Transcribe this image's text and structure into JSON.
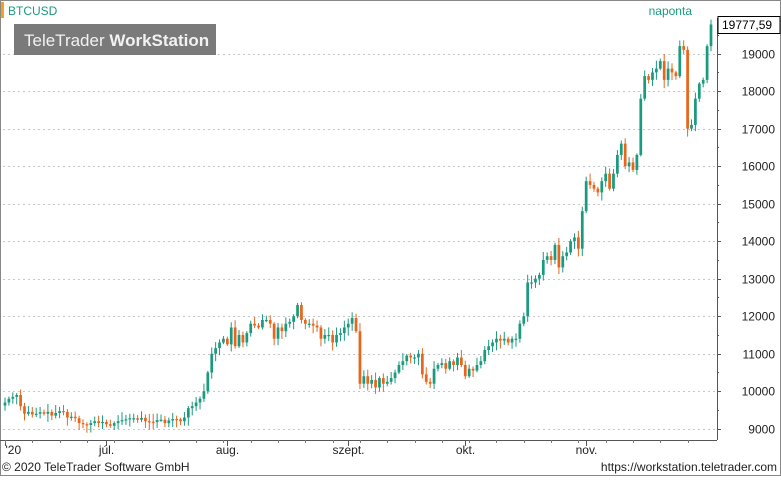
{
  "app": {
    "symbol": "BTCUSD",
    "logo_text_light": "TeleTrader ",
    "logo_text_bold": "WorkStation",
    "interval": "naponta",
    "copyright": "© 2020 TeleTrader Software GmbH",
    "url": "https://workstation.teletrader.com"
  },
  "colors": {
    "up": "#1a9a7e",
    "down": "#e8661c",
    "grid": "#c8c8c8",
    "symbol_bar": "#f5a31a",
    "axis_text": "#222222",
    "logo_bg": "#7a7a7a"
  },
  "chart_data": {
    "type": "candlestick",
    "symbol": "BTCUSD",
    "last_price_label": "19777,59",
    "last_price": 19777.59,
    "ylim": [
      8700,
      19950
    ],
    "y_ticks": [
      {
        "value": 9000,
        "label": "9000"
      },
      {
        "value": 10000,
        "label": "10000"
      },
      {
        "value": 11000,
        "label": "11000"
      },
      {
        "value": 12000,
        "label": "12000"
      },
      {
        "value": 13000,
        "label": "13000"
      },
      {
        "value": 14000,
        "label": "14000"
      },
      {
        "value": 15000,
        "label": "15000"
      },
      {
        "value": 16000,
        "label": "16000"
      },
      {
        "value": 17000,
        "label": "17000"
      },
      {
        "value": 18000,
        "label": "18000"
      },
      {
        "value": 19000,
        "label": "19000"
      }
    ],
    "x_ticks": [
      {
        "index": 0,
        "label": "'20"
      },
      {
        "index": 26,
        "label": "júl."
      },
      {
        "index": 57,
        "label": "aug."
      },
      {
        "index": 88,
        "label": "szept."
      },
      {
        "index": 118,
        "label": "okt."
      },
      {
        "index": 149,
        "label": "nov."
      }
    ],
    "first_date": "2020-06-05",
    "last_date": "2020-12-01",
    "closes": [
      9700,
      9800,
      9850,
      9900,
      9600,
      9400,
      9450,
      9380,
      9400,
      9440,
      9400,
      9450,
      9350,
      9420,
      9470,
      9450,
      9300,
      9320,
      9280,
      9150,
      9120,
      9100,
      9150,
      9200,
      9150,
      9180,
      9120,
      9080,
      9150,
      9200,
      9230,
      9250,
      9280,
      9280,
      9240,
      9290,
      9200,
      9190,
      9180,
      9230,
      9240,
      9150,
      9220,
      9260,
      9250,
      9200,
      9300,
      9550,
      9600,
      9700,
      9800,
      10000,
      10500,
      11000,
      11150,
      11300,
      11400,
      11250,
      11700,
      11200,
      11500,
      11300,
      11550,
      11800,
      11750,
      11700,
      11900,
      11900,
      11800,
      11400,
      11700,
      11600,
      11800,
      11850,
      12000,
      12300,
      11900,
      11800,
      11800,
      11750,
      11700,
      11400,
      11500,
      11500,
      11300,
      11500,
      11550,
      11700,
      11800,
      11950,
      11600,
      10200,
      10400,
      10200,
      10300,
      10100,
      10350,
      10200,
      10250,
      10350,
      10500,
      10700,
      10800,
      10950,
      10900,
      10900,
      11000,
      10450,
      10250,
      10200,
      10600,
      10700,
      10750,
      10600,
      10800,
      10700,
      10900,
      10700,
      10400,
      10600,
      10550,
      10700,
      10800,
      11100,
      11200,
      11300,
      11400,
      11350,
      11400,
      11300,
      11400,
      11400,
      11800,
      12000,
      12900,
      12900,
      13000,
      13100,
      13500,
      13600,
      13500,
      13900,
      13300,
      13600,
      13700,
      14000,
      14100,
      13800,
      14800,
      15600,
      15500,
      15400,
      15300,
      15600,
      15800,
      15400,
      15800,
      16300,
      16600,
      16000,
      16100,
      15900,
      16300,
      17800,
      18400,
      18300,
      18500,
      18600,
      18800,
      18300,
      18600,
      18500,
      18400,
      19200,
      19100,
      17000,
      17100,
      17800,
      18200,
      18300,
      19200,
      19777.59
    ]
  }
}
